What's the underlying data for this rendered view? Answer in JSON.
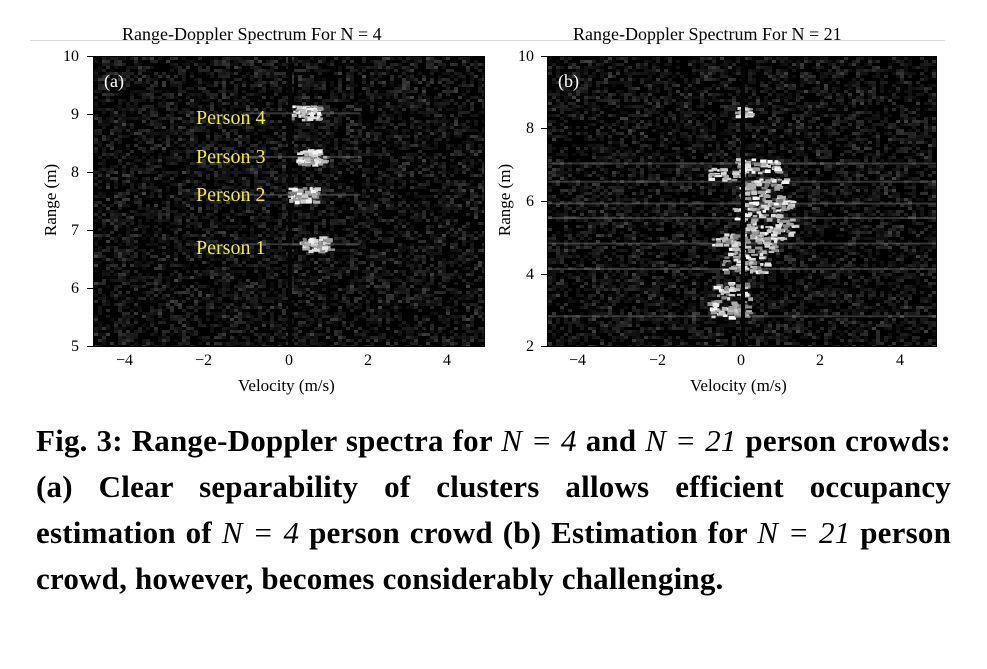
{
  "figure": {
    "panels": [
      {
        "title": "Range-Doppler Spectrum For N = 4",
        "tag": "(a)",
        "xlabel": "Velocity (m/s)",
        "ylabel": "Range (m)",
        "xticks": [
          "−4",
          "−2",
          "0",
          "2",
          "4"
        ],
        "yticks": [
          "5",
          "6",
          "7",
          "8",
          "9",
          "10"
        ],
        "annotations": [
          "Person 4",
          "Person 3",
          "Person 2",
          "Person 1"
        ]
      },
      {
        "title": "Range-Doppler Spectrum For N = 21",
        "tag": "(b)",
        "xlabel": "Velocity (m/s)",
        "ylabel": "Range (m)",
        "xticks": [
          "−4",
          "−2",
          "0",
          "2",
          "4"
        ],
        "yticks": [
          "2",
          "4",
          "6",
          "8",
          "10"
        ],
        "annotations": []
      }
    ],
    "caption": {
      "lead": "Fig. 3: Range-Doppler spectra for ",
      "n4": "N = 4",
      "and": " and ",
      "n21": "N = 21",
      "rest1": " person crowds: (a) Clear separability of clusters allows efficient occupancy estimation of ",
      "n4b": "N = 4",
      "rest2": " person crowd (b) Estimation for ",
      "n21b": "N = 21",
      "rest3": " person crowd, however, becomes considerably challenging."
    }
  },
  "chart_data": [
    {
      "type": "heatmap",
      "title": "Range-Doppler Spectrum For N = 4",
      "xlabel": "Velocity (m/s)",
      "ylabel": "Range (m)",
      "xlim": [
        -5,
        5
      ],
      "ylim": [
        5,
        10
      ],
      "xticks": [
        -4,
        -2,
        0,
        2,
        4
      ],
      "yticks": [
        5,
        6,
        7,
        8,
        9,
        10
      ],
      "clusters": [
        {
          "name": "Person 1",
          "range": 6.8,
          "velocity": 0.6
        },
        {
          "name": "Person 2",
          "range": 7.65,
          "velocity": 0.3
        },
        {
          "name": "Person 3",
          "range": 8.3,
          "velocity": 0.5
        },
        {
          "name": "Person 4",
          "range": 9.05,
          "velocity": 0.4
        }
      ]
    },
    {
      "type": "heatmap",
      "title": "Range-Doppler Spectrum For N = 21",
      "xlabel": "Velocity (m/s)",
      "ylabel": "Range (m)",
      "xlim": [
        -5,
        5
      ],
      "ylim": [
        2,
        10
      ],
      "xticks": [
        -4,
        -2,
        0,
        2,
        4
      ],
      "yticks": [
        2,
        4,
        6,
        8,
        10
      ]
    }
  ]
}
